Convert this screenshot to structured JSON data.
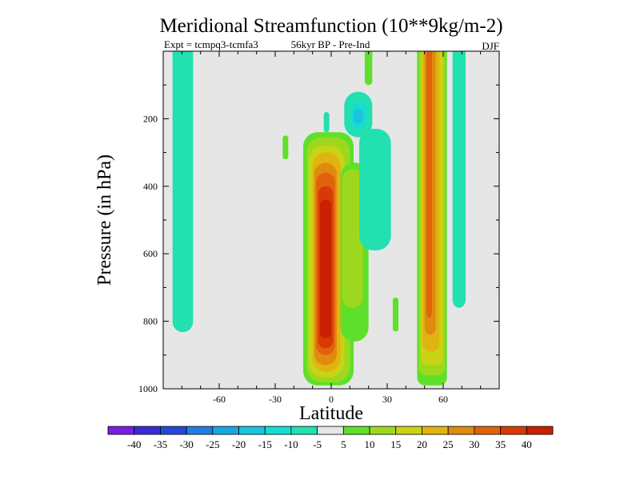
{
  "chart_data": {
    "type": "heatmap",
    "title": "Meridional Streamfunction (10**9kg/m-2)",
    "subtitle_left": "Expt = tcmpq3-tcmfa3",
    "subtitle_center": "56kyr BP - Pre-Ind",
    "subtitle_right": "DJF",
    "xlabel": "Latitude",
    "ylabel": "Pressure (in hPa)",
    "xlim": [
      -90,
      90
    ],
    "ylim": [
      0,
      1000
    ],
    "y_reversed": true,
    "xticks": [
      -60,
      -30,
      0,
      30,
      60
    ],
    "yticks": [
      200,
      400,
      600,
      800,
      1000
    ],
    "background_value": "-5 to 5",
    "levels": [
      "-40",
      "-35",
      "-30",
      "-25",
      "-20",
      "-15",
      "-10",
      "-5",
      "5",
      "10",
      "15",
      "20",
      "25",
      "30",
      "35",
      "40"
    ],
    "colors": [
      "#7a1fe0",
      "#3a2cd8",
      "#2548d8",
      "#1f7fe0",
      "#1aa6e0",
      "#1ac4e0",
      "#17dcd0",
      "#22e0b0",
      "#e6e6e6",
      "#5ee02a",
      "#9ed81e",
      "#c8d414",
      "#e0b410",
      "#e08a10",
      "#e0620c",
      "#d83a06",
      "#c82000"
    ],
    "features": [
      {
        "name": "southern-cell",
        "sign": "negative",
        "lat_range": [
          -85,
          -74
        ],
        "p_range": [
          0,
          830
        ],
        "max_abs": 10
      },
      {
        "name": "tropical-positive-cell",
        "sign": "positive",
        "lat_range": [
          -15,
          12
        ],
        "p_range": [
          240,
          990
        ],
        "center": {
          "lat": -2,
          "p": 680
        },
        "max_abs": 42
      },
      {
        "name": "subtropical-upper-negative",
        "sign": "negative",
        "lat_range": [
          5,
          20
        ],
        "p_range": [
          80,
          260
        ],
        "max_abs": 18
      },
      {
        "name": "mid-latitude-positive-band",
        "sign": "positive",
        "lat_range": [
          46,
          62
        ],
        "p_range": [
          0,
          990
        ],
        "max_abs": 35
      },
      {
        "name": "high-latitude-negative-band",
        "sign": "negative",
        "lat_range": [
          65,
          72
        ],
        "p_range": [
          0,
          760
        ],
        "max_abs": 10
      }
    ]
  }
}
